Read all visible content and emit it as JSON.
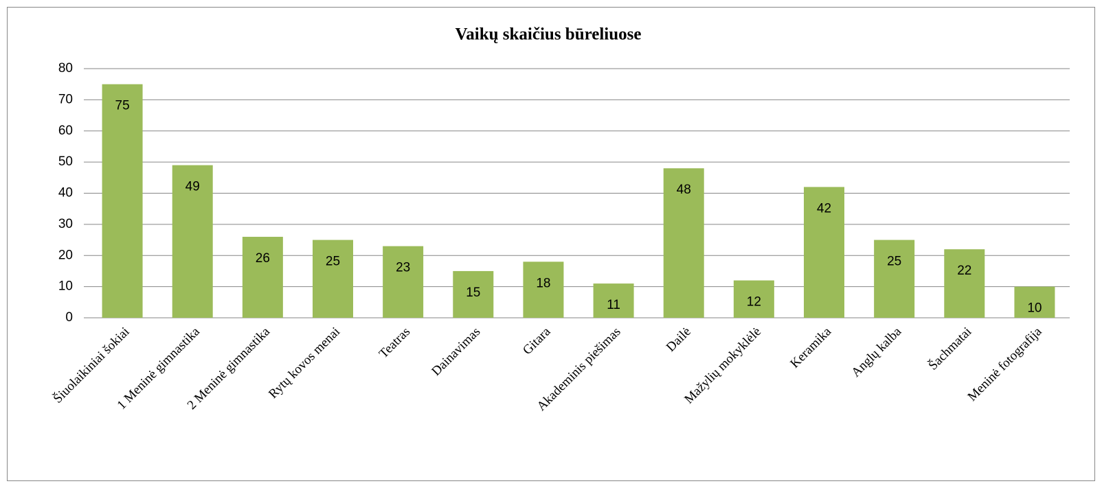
{
  "chart_data": {
    "type": "bar",
    "title": "Vaikų skaičius būreliuose",
    "categories": [
      "Šiuolaikiniai šokiai",
      "1 Meninė gimnastika",
      "2 Meninė gimnastika",
      "Rytų kovos menai",
      "Teatras",
      "Dainavimas",
      "Gitara",
      "Akademinis piešimas",
      "Dailė",
      "Mažylių mokyklėlė",
      "Keramika",
      "Anglų kalba",
      "Šachmatai",
      "Meninė fotografija"
    ],
    "values": [
      75,
      49,
      26,
      25,
      23,
      15,
      18,
      11,
      48,
      12,
      42,
      25,
      22,
      10
    ],
    "color": "#9bbb59",
    "ylim": [
      0,
      80
    ],
    "yticks": [
      0,
      10,
      20,
      30,
      40,
      50,
      60,
      70,
      80
    ],
    "grid": true
  }
}
